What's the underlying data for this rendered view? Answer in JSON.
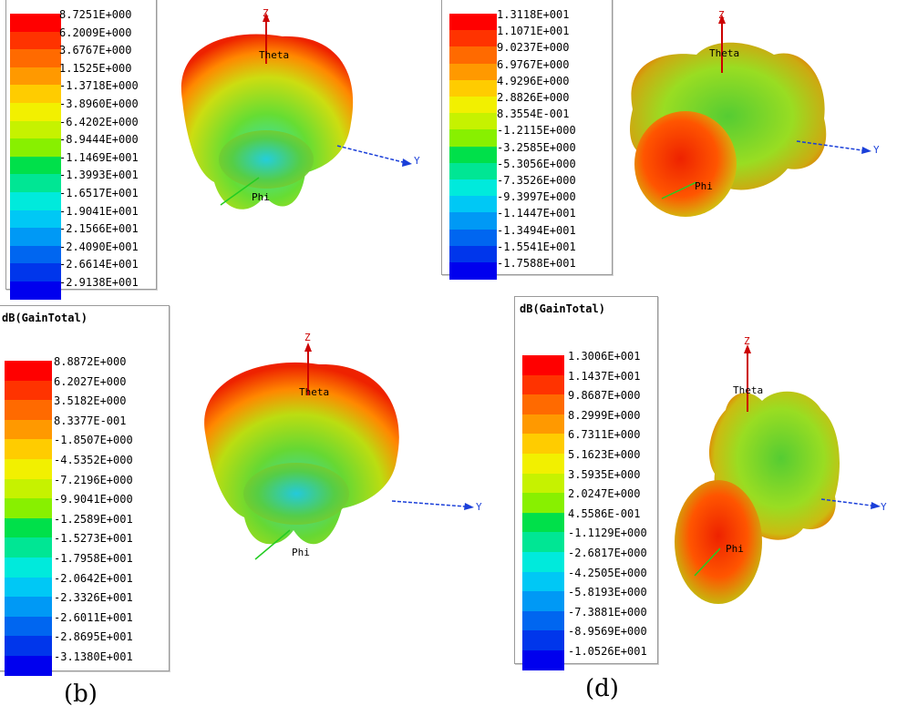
{
  "figure": {
    "captions": {
      "b": "(b)",
      "d": "(d)"
    },
    "axes": {
      "z": "Z",
      "y": "Y",
      "theta": "Theta",
      "phi": "Phi"
    }
  },
  "colors": [
    "#ff0000",
    "#ff3300",
    "#ff6a00",
    "#ff9900",
    "#ffcc00",
    "#f2f000",
    "#c6f200",
    "#88f000",
    "#33e600",
    "#00e04a",
    "#00e694",
    "#00eadc",
    "#00c8f5",
    "#0099f5",
    "#0066f0",
    "#0036eb",
    "#0000ee"
  ],
  "chart_data": [
    {
      "panel": "a",
      "type": "3d-radiation-pattern",
      "legend_title": "",
      "scale_values": [
        "8.7251E+000",
        "6.2009E+000",
        "3.6767E+000",
        "1.1525E+000",
        "-1.3718E+000",
        "-3.8960E+000",
        "-6.4202E+000",
        "-8.9444E+000",
        "-1.1469E+001",
        "-1.3993E+001",
        "-1.6517E+001",
        "-1.9041E+001",
        "-2.1566E+001",
        "-2.4090E+001",
        "-2.6614E+001",
        "-2.9138E+001"
      ]
    },
    {
      "panel": "c",
      "type": "3d-radiation-pattern",
      "legend_title": "",
      "scale_values": [
        "1.3118E+001",
        "1.1071E+001",
        "9.0237E+000",
        "6.9767E+000",
        "4.9296E+000",
        "2.8826E+000",
        "8.3554E-001",
        "-1.2115E+000",
        "-3.2585E+000",
        "-5.3056E+000",
        "-7.3526E+000",
        "-9.3997E+000",
        "-1.1447E+001",
        "-1.3494E+001",
        "-1.5541E+001",
        "-1.7588E+001"
      ]
    },
    {
      "panel": "b",
      "type": "3d-radiation-pattern",
      "legend_title": "dB(GainTotal)",
      "caption": "(b)",
      "scale_values": [
        "8.8872E+000",
        "6.2027E+000",
        "3.5182E+000",
        "8.3377E-001",
        "-1.8507E+000",
        "-4.5352E+000",
        "-7.2196E+000",
        "-9.9041E+000",
        "-1.2589E+001",
        "-1.5273E+001",
        "-1.7958E+001",
        "-2.0642E+001",
        "-2.3326E+001",
        "-2.6011E+001",
        "-2.8695E+001",
        "-3.1380E+001"
      ]
    },
    {
      "panel": "d",
      "type": "3d-radiation-pattern",
      "legend_title": "dB(GainTotal)",
      "caption": "(d)",
      "scale_values": [
        "1.3006E+001",
        "1.1437E+001",
        "9.8687E+000",
        "8.2999E+000",
        "6.7311E+000",
        "5.1623E+000",
        "3.5935E+000",
        "2.0247E+000",
        "4.5586E-001",
        "-1.1129E+000",
        "-2.6817E+000",
        "-4.2505E+000",
        "-5.8193E+000",
        "-7.3881E+000",
        "-8.9569E+000",
        "-1.0526E+001"
      ]
    }
  ]
}
